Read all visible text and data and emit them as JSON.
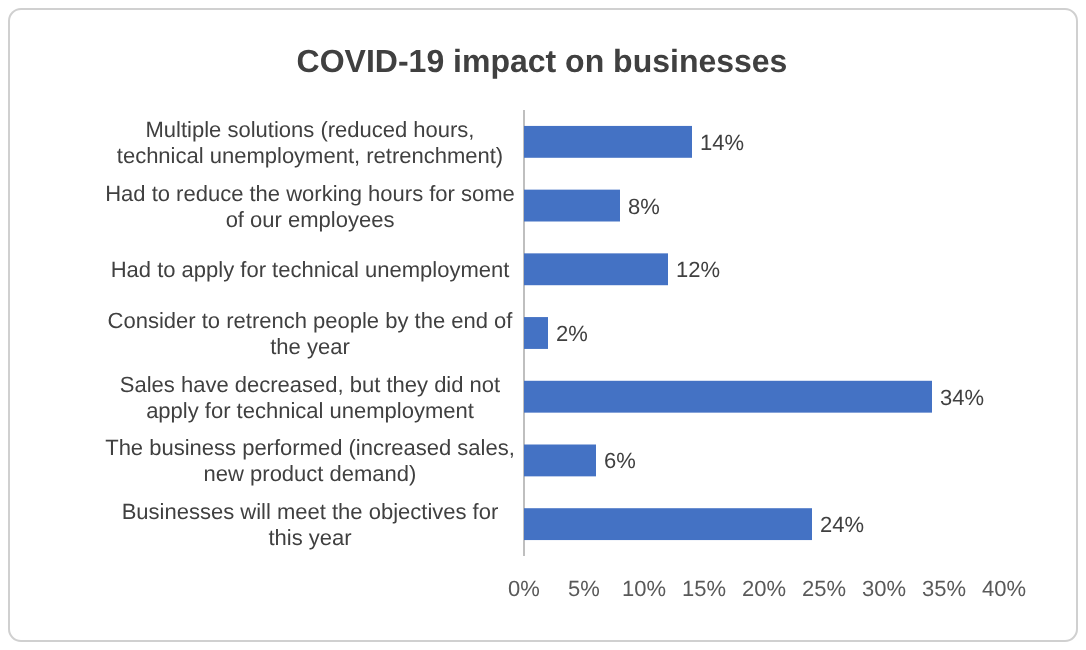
{
  "chart_data": {
    "type": "bar",
    "orientation": "horizontal",
    "title": "COVID-19 impact on businesses",
    "categories": [
      "Multiple solutions (reduced hours, technical unemployment, retrenchment)",
      "Had to reduce the working hours for some of our employees",
      "Had to apply for technical unemployment",
      "Consider to retrench people by the end of the year",
      "Sales have decreased, but they did not apply for technical unemployment",
      "The business performed (increased sales, new product demand)",
      "Businesses will meet the objectives for this year"
    ],
    "values": [
      14,
      8,
      12,
      2,
      34,
      6,
      24
    ],
    "value_labels": [
      "14%",
      "8%",
      "12%",
      "2%",
      "34%",
      "6%",
      "24%"
    ],
    "color": "#4472c4",
    "xlim": [
      0,
      40
    ],
    "xticks": [
      {
        "value": 0,
        "label": "0%"
      },
      {
        "value": 5,
        "label": "5%"
      },
      {
        "value": 10,
        "label": "10%"
      },
      {
        "value": 15,
        "label": "15%"
      },
      {
        "value": 20,
        "label": "20%"
      },
      {
        "value": 25,
        "label": "25%"
      },
      {
        "value": 30,
        "label": "30%"
      },
      {
        "value": 35,
        "label": "35%"
      },
      {
        "value": 40,
        "label": "40%"
      }
    ],
    "grid": false
  }
}
